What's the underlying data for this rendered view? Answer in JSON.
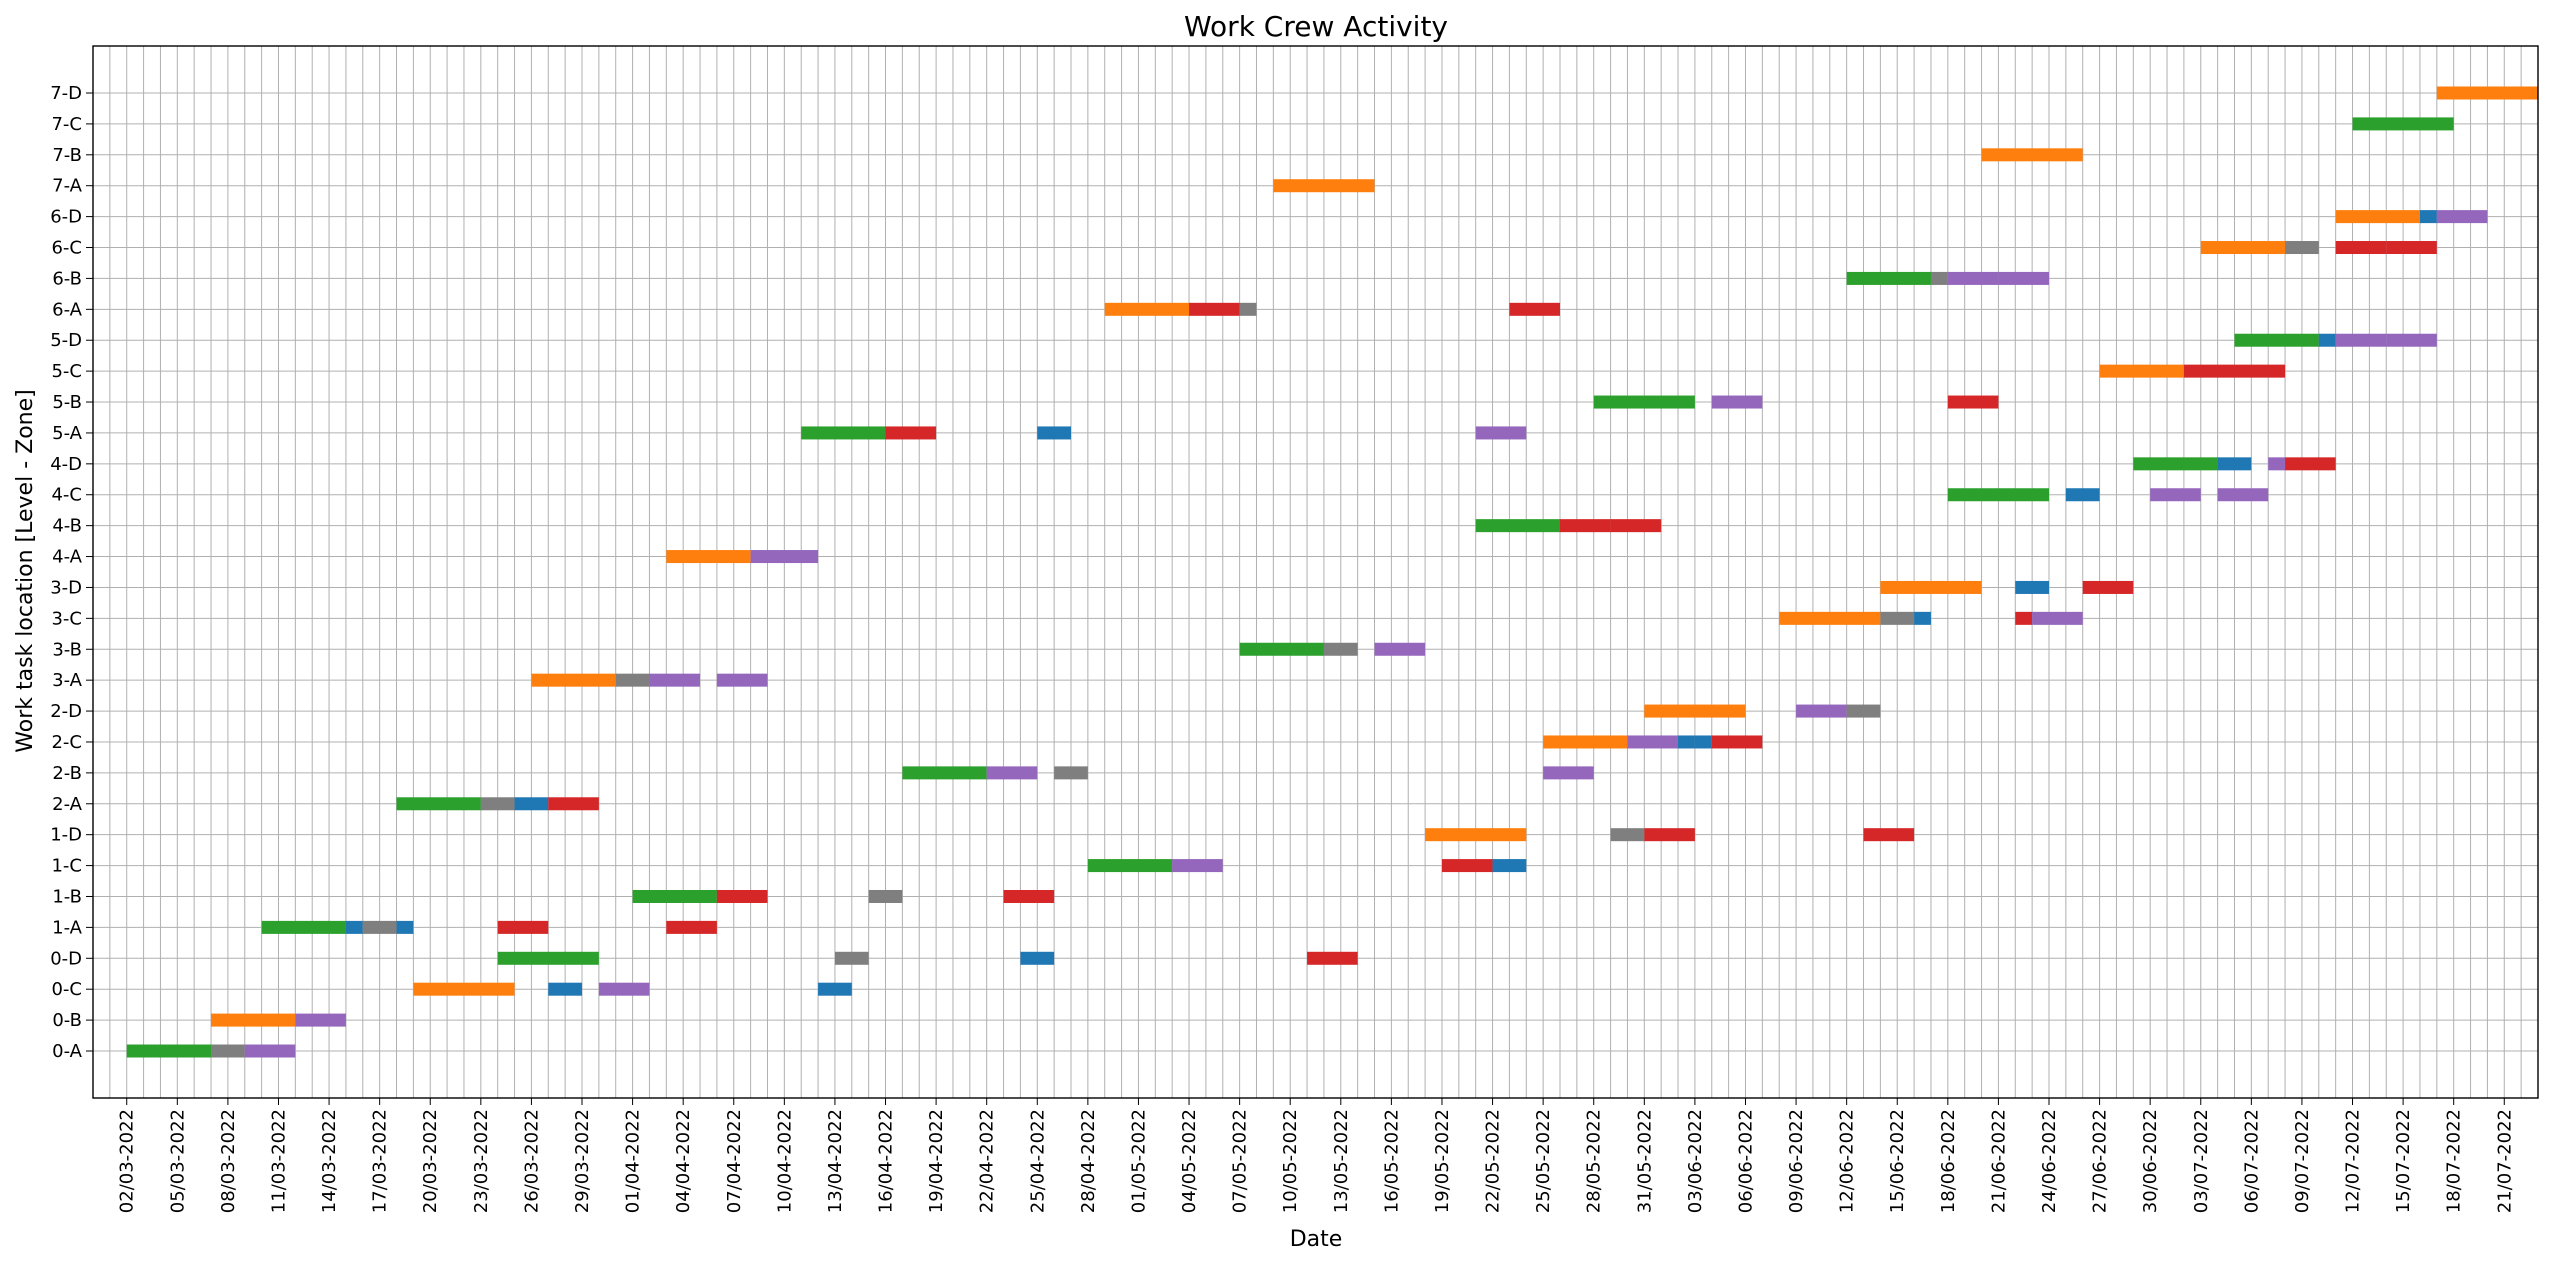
{
  "chart_data": {
    "type": "gantt",
    "title": "Work Crew Activity",
    "xlabel": "Date",
    "ylabel": "Work task location [Level - Zone]",
    "date_format": "DD/MM/YYYY",
    "x_range": [
      "2022-02-28",
      "2022-07-23"
    ],
    "x_tick_labels": [
      "02/03-2022",
      "05/03-2022",
      "08/03-2022",
      "11/03-2022",
      "14/03-2022",
      "17/03-2022",
      "20/03-2022",
      "23/03-2022",
      "26/03-2022",
      "29/03-2022",
      "01/04-2022",
      "04/04-2022",
      "07/04-2022",
      "10/04-2022",
      "13/04-2022",
      "16/04-2022",
      "19/04-2022",
      "22/04-2022",
      "25/04-2022",
      "28/04-2022",
      "01/05-2022",
      "04/05-2022",
      "07/05-2022",
      "10/05-2022",
      "13/05-2022",
      "16/05-2022",
      "19/05-2022",
      "22/05-2022",
      "25/05-2022",
      "28/05-2022",
      "31/05-2022",
      "03/06-2022",
      "06/06-2022",
      "09/06-2022",
      "12/06-2022",
      "15/06-2022",
      "18/06-2022",
      "21/06-2022",
      "24/06-2022",
      "27/06-2022",
      "30/06-2022",
      "03/07-2022",
      "06/07-2022",
      "09/07-2022",
      "12/07-2022",
      "15/07-2022",
      "18/07-2022",
      "21/07-2022"
    ],
    "y_categories": [
      "0-A",
      "0-B",
      "0-C",
      "0-D",
      "1-A",
      "1-B",
      "1-C",
      "1-D",
      "2-A",
      "2-B",
      "2-C",
      "2-D",
      "3-A",
      "3-B",
      "3-C",
      "3-D",
      "4-A",
      "4-B",
      "4-C",
      "4-D",
      "5-A",
      "5-B",
      "5-C",
      "5-D",
      "6-A",
      "6-B",
      "6-C",
      "6-D",
      "7-A",
      "7-B",
      "7-C",
      "7-D"
    ],
    "grid": true,
    "legend": "none",
    "crew_colors": {
      "green": "#2ca02c",
      "orange": "#ff7f0e",
      "gray": "#7f7f7f",
      "purple": "#9467bd",
      "blue": "#1f77b4",
      "red": "#d62728"
    },
    "bars": [
      {
        "loc": "0-A",
        "crew": "green",
        "start": "2022-03-02",
        "end": "2022-03-07"
      },
      {
        "loc": "0-A",
        "crew": "gray",
        "start": "2022-03-07",
        "end": "2022-03-09"
      },
      {
        "loc": "0-A",
        "crew": "purple",
        "start": "2022-03-09",
        "end": "2022-03-12"
      },
      {
        "loc": "0-B",
        "crew": "orange",
        "start": "2022-03-07",
        "end": "2022-03-12"
      },
      {
        "loc": "0-B",
        "crew": "purple",
        "start": "2022-03-12",
        "end": "2022-03-15"
      },
      {
        "loc": "0-C",
        "crew": "orange",
        "start": "2022-03-19",
        "end": "2022-03-25"
      },
      {
        "loc": "0-C",
        "crew": "blue",
        "start": "2022-03-27",
        "end": "2022-03-29"
      },
      {
        "loc": "0-C",
        "crew": "purple",
        "start": "2022-03-30",
        "end": "2022-04-02"
      },
      {
        "loc": "0-C",
        "crew": "blue",
        "start": "2022-04-12",
        "end": "2022-04-14"
      },
      {
        "loc": "0-D",
        "crew": "green",
        "start": "2022-03-24",
        "end": "2022-03-30"
      },
      {
        "loc": "0-D",
        "crew": "gray",
        "start": "2022-04-13",
        "end": "2022-04-15"
      },
      {
        "loc": "0-D",
        "crew": "blue",
        "start": "2022-04-24",
        "end": "2022-04-26"
      },
      {
        "loc": "0-D",
        "crew": "red",
        "start": "2022-05-11",
        "end": "2022-05-14"
      },
      {
        "loc": "1-A",
        "crew": "green",
        "start": "2022-03-10",
        "end": "2022-03-15"
      },
      {
        "loc": "1-A",
        "crew": "blue",
        "start": "2022-03-15",
        "end": "2022-03-16"
      },
      {
        "loc": "1-A",
        "crew": "gray",
        "start": "2022-03-16",
        "end": "2022-03-18"
      },
      {
        "loc": "1-A",
        "crew": "blue",
        "start": "2022-03-18",
        "end": "2022-03-19"
      },
      {
        "loc": "1-A",
        "crew": "red",
        "start": "2022-03-24",
        "end": "2022-03-27"
      },
      {
        "loc": "1-A",
        "crew": "red",
        "start": "2022-04-03",
        "end": "2022-04-06"
      },
      {
        "loc": "1-B",
        "crew": "green",
        "start": "2022-04-01",
        "end": "2022-04-06"
      },
      {
        "loc": "1-B",
        "crew": "red",
        "start": "2022-04-06",
        "end": "2022-04-09"
      },
      {
        "loc": "1-B",
        "crew": "gray",
        "start": "2022-04-15",
        "end": "2022-04-17"
      },
      {
        "loc": "1-B",
        "crew": "red",
        "start": "2022-04-23",
        "end": "2022-04-26"
      },
      {
        "loc": "1-C",
        "crew": "green",
        "start": "2022-04-28",
        "end": "2022-05-03"
      },
      {
        "loc": "1-C",
        "crew": "purple",
        "start": "2022-05-03",
        "end": "2022-05-06"
      },
      {
        "loc": "1-C",
        "crew": "red",
        "start": "2022-05-19",
        "end": "2022-05-22"
      },
      {
        "loc": "1-C",
        "crew": "blue",
        "start": "2022-05-22",
        "end": "2022-05-24"
      },
      {
        "loc": "1-D",
        "crew": "orange",
        "start": "2022-05-18",
        "end": "2022-05-24"
      },
      {
        "loc": "1-D",
        "crew": "gray",
        "start": "2022-05-29",
        "end": "2022-05-31"
      },
      {
        "loc": "1-D",
        "crew": "red",
        "start": "2022-05-31",
        "end": "2022-06-03"
      },
      {
        "loc": "1-D",
        "crew": "red",
        "start": "2022-06-13",
        "end": "2022-06-16"
      },
      {
        "loc": "2-A",
        "crew": "green",
        "start": "2022-03-18",
        "end": "2022-03-23"
      },
      {
        "loc": "2-A",
        "crew": "gray",
        "start": "2022-03-23",
        "end": "2022-03-25"
      },
      {
        "loc": "2-A",
        "crew": "blue",
        "start": "2022-03-25",
        "end": "2022-03-27"
      },
      {
        "loc": "2-A",
        "crew": "red",
        "start": "2022-03-27",
        "end": "2022-03-30"
      },
      {
        "loc": "2-B",
        "crew": "green",
        "start": "2022-04-17",
        "end": "2022-04-22"
      },
      {
        "loc": "2-B",
        "crew": "purple",
        "start": "2022-04-22",
        "end": "2022-04-25"
      },
      {
        "loc": "2-B",
        "crew": "gray",
        "start": "2022-04-26",
        "end": "2022-04-28"
      },
      {
        "loc": "2-B",
        "crew": "purple",
        "start": "2022-05-25",
        "end": "2022-05-28"
      },
      {
        "loc": "2-C",
        "crew": "orange",
        "start": "2022-05-25",
        "end": "2022-05-30"
      },
      {
        "loc": "2-C",
        "crew": "purple",
        "start": "2022-05-30",
        "end": "2022-06-02"
      },
      {
        "loc": "2-C",
        "crew": "blue",
        "start": "2022-06-02",
        "end": "2022-06-03"
      },
      {
        "loc": "2-C",
        "crew": "blue",
        "start": "2022-06-03",
        "end": "2022-06-04"
      },
      {
        "loc": "2-C",
        "crew": "red",
        "start": "2022-06-04",
        "end": "2022-06-07"
      },
      {
        "loc": "2-D",
        "crew": "orange",
        "start": "2022-05-31",
        "end": "2022-06-06"
      },
      {
        "loc": "2-D",
        "crew": "purple",
        "start": "2022-06-09",
        "end": "2022-06-12"
      },
      {
        "loc": "2-D",
        "crew": "gray",
        "start": "2022-06-12",
        "end": "2022-06-14"
      },
      {
        "loc": "3-A",
        "crew": "orange",
        "start": "2022-03-26",
        "end": "2022-03-31"
      },
      {
        "loc": "3-A",
        "crew": "gray",
        "start": "2022-03-31",
        "end": "2022-04-02"
      },
      {
        "loc": "3-A",
        "crew": "purple",
        "start": "2022-04-02",
        "end": "2022-04-05"
      },
      {
        "loc": "3-A",
        "crew": "purple",
        "start": "2022-04-06",
        "end": "2022-04-09"
      },
      {
        "loc": "3-B",
        "crew": "green",
        "start": "2022-05-07",
        "end": "2022-05-12"
      },
      {
        "loc": "3-B",
        "crew": "gray",
        "start": "2022-05-12",
        "end": "2022-05-14"
      },
      {
        "loc": "3-B",
        "crew": "purple",
        "start": "2022-05-15",
        "end": "2022-05-18"
      },
      {
        "loc": "3-C",
        "crew": "orange",
        "start": "2022-06-08",
        "end": "2022-06-14"
      },
      {
        "loc": "3-C",
        "crew": "gray",
        "start": "2022-06-14",
        "end": "2022-06-16"
      },
      {
        "loc": "3-C",
        "crew": "blue",
        "start": "2022-06-16",
        "end": "2022-06-17"
      },
      {
        "loc": "3-C",
        "crew": "red",
        "start": "2022-06-22",
        "end": "2022-06-23"
      },
      {
        "loc": "3-C",
        "crew": "purple",
        "start": "2022-06-23",
        "end": "2022-06-26"
      },
      {
        "loc": "3-D",
        "crew": "orange",
        "start": "2022-06-14",
        "end": "2022-06-20"
      },
      {
        "loc": "3-D",
        "crew": "blue",
        "start": "2022-06-22",
        "end": "2022-06-24"
      },
      {
        "loc": "3-D",
        "crew": "red",
        "start": "2022-06-26",
        "end": "2022-06-29"
      },
      {
        "loc": "4-A",
        "crew": "orange",
        "start": "2022-04-03",
        "end": "2022-04-08"
      },
      {
        "loc": "4-A",
        "crew": "purple",
        "start": "2022-04-08",
        "end": "2022-04-12"
      },
      {
        "loc": "4-B",
        "crew": "green",
        "start": "2022-05-21",
        "end": "2022-05-26"
      },
      {
        "loc": "4-B",
        "crew": "red",
        "start": "2022-05-26",
        "end": "2022-05-29"
      },
      {
        "loc": "4-B",
        "crew": "red",
        "start": "2022-05-29",
        "end": "2022-06-01"
      },
      {
        "loc": "4-C",
        "crew": "green",
        "start": "2022-06-18",
        "end": "2022-06-24"
      },
      {
        "loc": "4-C",
        "crew": "blue",
        "start": "2022-06-25",
        "end": "2022-06-27"
      },
      {
        "loc": "4-C",
        "crew": "purple",
        "start": "2022-06-30",
        "end": "2022-07-03"
      },
      {
        "loc": "4-C",
        "crew": "purple",
        "start": "2022-07-04",
        "end": "2022-07-07"
      },
      {
        "loc": "4-D",
        "crew": "green",
        "start": "2022-06-29",
        "end": "2022-07-04"
      },
      {
        "loc": "4-D",
        "crew": "blue",
        "start": "2022-07-04",
        "end": "2022-07-06"
      },
      {
        "loc": "4-D",
        "crew": "purple",
        "start": "2022-07-07",
        "end": "2022-07-08"
      },
      {
        "loc": "4-D",
        "crew": "red",
        "start": "2022-07-08",
        "end": "2022-07-11"
      },
      {
        "loc": "5-A",
        "crew": "green",
        "start": "2022-04-11",
        "end": "2022-04-16"
      },
      {
        "loc": "5-A",
        "crew": "red",
        "start": "2022-04-16",
        "end": "2022-04-19"
      },
      {
        "loc": "5-A",
        "crew": "blue",
        "start": "2022-04-25",
        "end": "2022-04-27"
      },
      {
        "loc": "5-A",
        "crew": "purple",
        "start": "2022-05-21",
        "end": "2022-05-24"
      },
      {
        "loc": "5-B",
        "crew": "green",
        "start": "2022-05-28",
        "end": "2022-06-03"
      },
      {
        "loc": "5-B",
        "crew": "purple",
        "start": "2022-06-04",
        "end": "2022-06-07"
      },
      {
        "loc": "5-B",
        "crew": "red",
        "start": "2022-06-18",
        "end": "2022-06-21"
      },
      {
        "loc": "5-C",
        "crew": "orange",
        "start": "2022-06-27",
        "end": "2022-07-02"
      },
      {
        "loc": "5-C",
        "crew": "red",
        "start": "2022-07-02",
        "end": "2022-07-05"
      },
      {
        "loc": "5-C",
        "crew": "red",
        "start": "2022-07-05",
        "end": "2022-07-08"
      },
      {
        "loc": "5-D",
        "crew": "green",
        "start": "2022-07-05",
        "end": "2022-07-10"
      },
      {
        "loc": "5-D",
        "crew": "blue",
        "start": "2022-07-10",
        "end": "2022-07-11"
      },
      {
        "loc": "5-D",
        "crew": "purple",
        "start": "2022-07-11",
        "end": "2022-07-14"
      },
      {
        "loc": "5-D",
        "crew": "purple",
        "start": "2022-07-14",
        "end": "2022-07-17"
      },
      {
        "loc": "6-A",
        "crew": "orange",
        "start": "2022-04-29",
        "end": "2022-05-04"
      },
      {
        "loc": "6-A",
        "crew": "red",
        "start": "2022-05-04",
        "end": "2022-05-07"
      },
      {
        "loc": "6-A",
        "crew": "gray",
        "start": "2022-05-07",
        "end": "2022-05-08"
      },
      {
        "loc": "6-A",
        "crew": "red",
        "start": "2022-05-23",
        "end": "2022-05-26"
      },
      {
        "loc": "6-B",
        "crew": "green",
        "start": "2022-06-12",
        "end": "2022-06-17"
      },
      {
        "loc": "6-B",
        "crew": "gray",
        "start": "2022-06-17",
        "end": "2022-06-18"
      },
      {
        "loc": "6-B",
        "crew": "purple",
        "start": "2022-06-18",
        "end": "2022-06-21"
      },
      {
        "loc": "6-B",
        "crew": "purple",
        "start": "2022-06-21",
        "end": "2022-06-24"
      },
      {
        "loc": "6-C",
        "crew": "orange",
        "start": "2022-07-03",
        "end": "2022-07-08"
      },
      {
        "loc": "6-C",
        "crew": "gray",
        "start": "2022-07-08",
        "end": "2022-07-10"
      },
      {
        "loc": "6-C",
        "crew": "red",
        "start": "2022-07-11",
        "end": "2022-07-14"
      },
      {
        "loc": "6-C",
        "crew": "red",
        "start": "2022-07-14",
        "end": "2022-07-17"
      },
      {
        "loc": "6-D",
        "crew": "orange",
        "start": "2022-07-11",
        "end": "2022-07-16"
      },
      {
        "loc": "6-D",
        "crew": "blue",
        "start": "2022-07-16",
        "end": "2022-07-17"
      },
      {
        "loc": "6-D",
        "crew": "purple",
        "start": "2022-07-17",
        "end": "2022-07-20"
      },
      {
        "loc": "7-A",
        "crew": "orange",
        "start": "2022-05-09",
        "end": "2022-05-15"
      },
      {
        "loc": "7-B",
        "crew": "orange",
        "start": "2022-06-20",
        "end": "2022-06-26"
      },
      {
        "loc": "7-C",
        "crew": "green",
        "start": "2022-07-12",
        "end": "2022-07-18"
      },
      {
        "loc": "7-D",
        "crew": "orange",
        "start": "2022-07-17",
        "end": "2022-07-23"
      }
    ]
  }
}
